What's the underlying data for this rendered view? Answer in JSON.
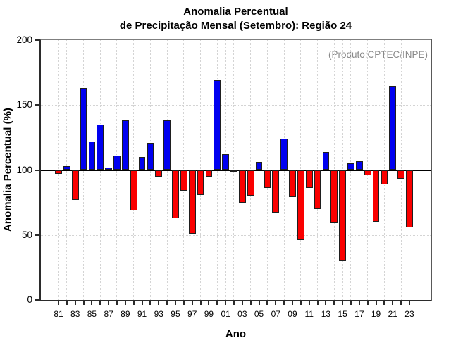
{
  "header": {
    "title_line1": "Anomalia Percentual",
    "title_line2": "de Precipitação Mensal (Setembro): Região 24"
  },
  "annotation": {
    "text": "(Produto:CPTEC/INPE)",
    "color": "#8a8a8a"
  },
  "axes": {
    "xlabel": "Ano",
    "ylabel": "Anomalia Percentual (%)",
    "yticks": [
      0,
      50,
      100,
      150,
      200
    ],
    "xtick_label_every": 2
  },
  "chart_data": {
    "type": "bar",
    "title": "Anomalia Percentual de Precipitação Mensal (Setembro): Região 24",
    "xlabel": "Ano",
    "ylabel": "Anomalia Percentual (%)",
    "ylim": [
      0,
      200
    ],
    "yticks": [
      0,
      50,
      100,
      150,
      200
    ],
    "baseline": 100,
    "grid": true,
    "legend": "none",
    "annotation": "(Produto:CPTEC/INPE)",
    "categories": [
      "81",
      "82",
      "83",
      "84",
      "85",
      "86",
      "87",
      "88",
      "89",
      "90",
      "91",
      "92",
      "93",
      "94",
      "95",
      "96",
      "97",
      "98",
      "99",
      "00",
      "01",
      "02",
      "03",
      "04",
      "05",
      "06",
      "07",
      "08",
      "09",
      "10",
      "11",
      "12",
      "13",
      "14",
      "15",
      "16",
      "17",
      "18",
      "19",
      "20",
      "21",
      "22",
      "23"
    ],
    "values": [
      97,
      103,
      77,
      163,
      122,
      135,
      102,
      111,
      138,
      69,
      110,
      121,
      95,
      138,
      63,
      84,
      51,
      81,
      95,
      169,
      112,
      100,
      75,
      80,
      106,
      86,
      67,
      124,
      79,
      46,
      86,
      70,
      114,
      59,
      30,
      105,
      107,
      96,
      60,
      89,
      165,
      93,
      56
    ],
    "colors": {
      "above_baseline": "#0000f0",
      "below_baseline": "#fa0000",
      "at_baseline": "#000000",
      "bar_border": "#1f1f1f",
      "grid": "#d4d4d4"
    }
  }
}
